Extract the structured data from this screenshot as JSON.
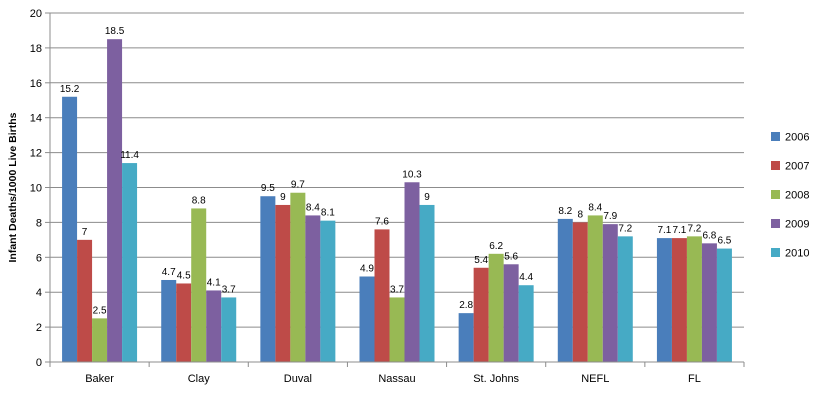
{
  "chart_data": {
    "type": "bar",
    "title": "",
    "xlabel": "",
    "ylabel": "Infant Deaths/1000 Live Births",
    "ylim": [
      0,
      20
    ],
    "ytick_step": 2,
    "yticks": [
      "0",
      "2",
      "4",
      "6",
      "8",
      "10",
      "12",
      "14",
      "16",
      "18",
      "20"
    ],
    "grid": true,
    "legend_position": "right",
    "categories": [
      "Baker",
      "Clay",
      "Duval",
      "Nassau",
      "St. Johns",
      "NEFL",
      "FL"
    ],
    "series": [
      {
        "name": "2006",
        "color": "#4a7ebb",
        "values": [
          15.2,
          4.7,
          9.5,
          4.9,
          2.8,
          8.2,
          7.1
        ],
        "labels": [
          "15.2",
          "4.7",
          "9.5",
          "4.9",
          "2.8",
          "8.2",
          "7.1"
        ]
      },
      {
        "name": "2007",
        "color": "#be4b48",
        "values": [
          7,
          4.5,
          9,
          7.6,
          5.4,
          8,
          7.1
        ],
        "labels": [
          "7",
          "4.5",
          "9",
          "7.6",
          "5.4",
          "8",
          "7.1"
        ]
      },
      {
        "name": "2008",
        "color": "#98b954",
        "values": [
          2.5,
          8.8,
          9.7,
          3.7,
          6.2,
          8.4,
          7.2
        ],
        "labels": [
          "2.5",
          "8.8",
          "9.7",
          "3.7",
          "6.2",
          "8.4",
          "7.2"
        ]
      },
      {
        "name": "2009",
        "color": "#7d60a0",
        "values": [
          18.5,
          4.1,
          8.4,
          10.3,
          5.6,
          7.9,
          6.8
        ],
        "labels": [
          "18.5",
          "4.1",
          "8.4",
          "10.3",
          "5.6",
          "7.9",
          "6.8"
        ]
      },
      {
        "name": "2010",
        "color": "#46aac5",
        "values": [
          11.4,
          3.7,
          8.1,
          9,
          4.4,
          7.2,
          6.5
        ],
        "labels": [
          "11.4",
          "3.7",
          "8.1",
          "9",
          "4.4",
          "7.2",
          "6.5"
        ]
      }
    ]
  }
}
